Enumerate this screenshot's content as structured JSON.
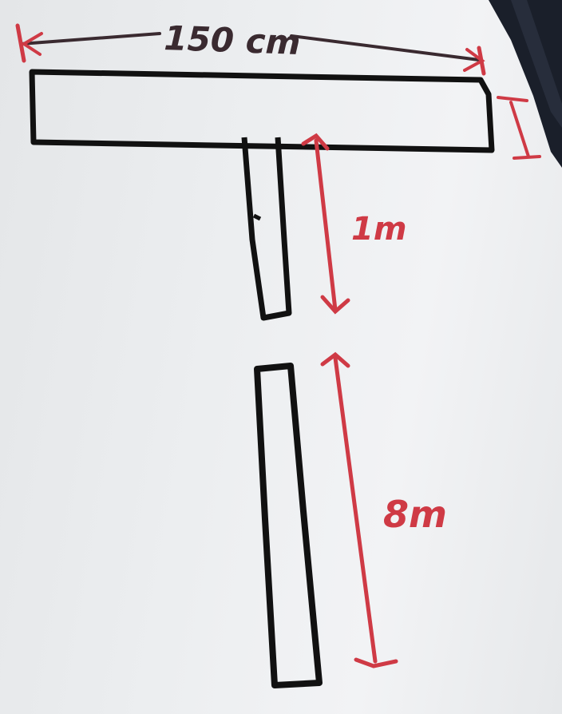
{
  "diagram": {
    "labels": {
      "top_width": "150 cm",
      "gap_length": "1m",
      "lower_length": "8m"
    },
    "colors": {
      "paper": "#eceef0",
      "ink": "#111111",
      "annotation_red": "#cf3a45",
      "annotation_dark": "#3a2a30",
      "page_edge": "#1a1f2a"
    }
  }
}
